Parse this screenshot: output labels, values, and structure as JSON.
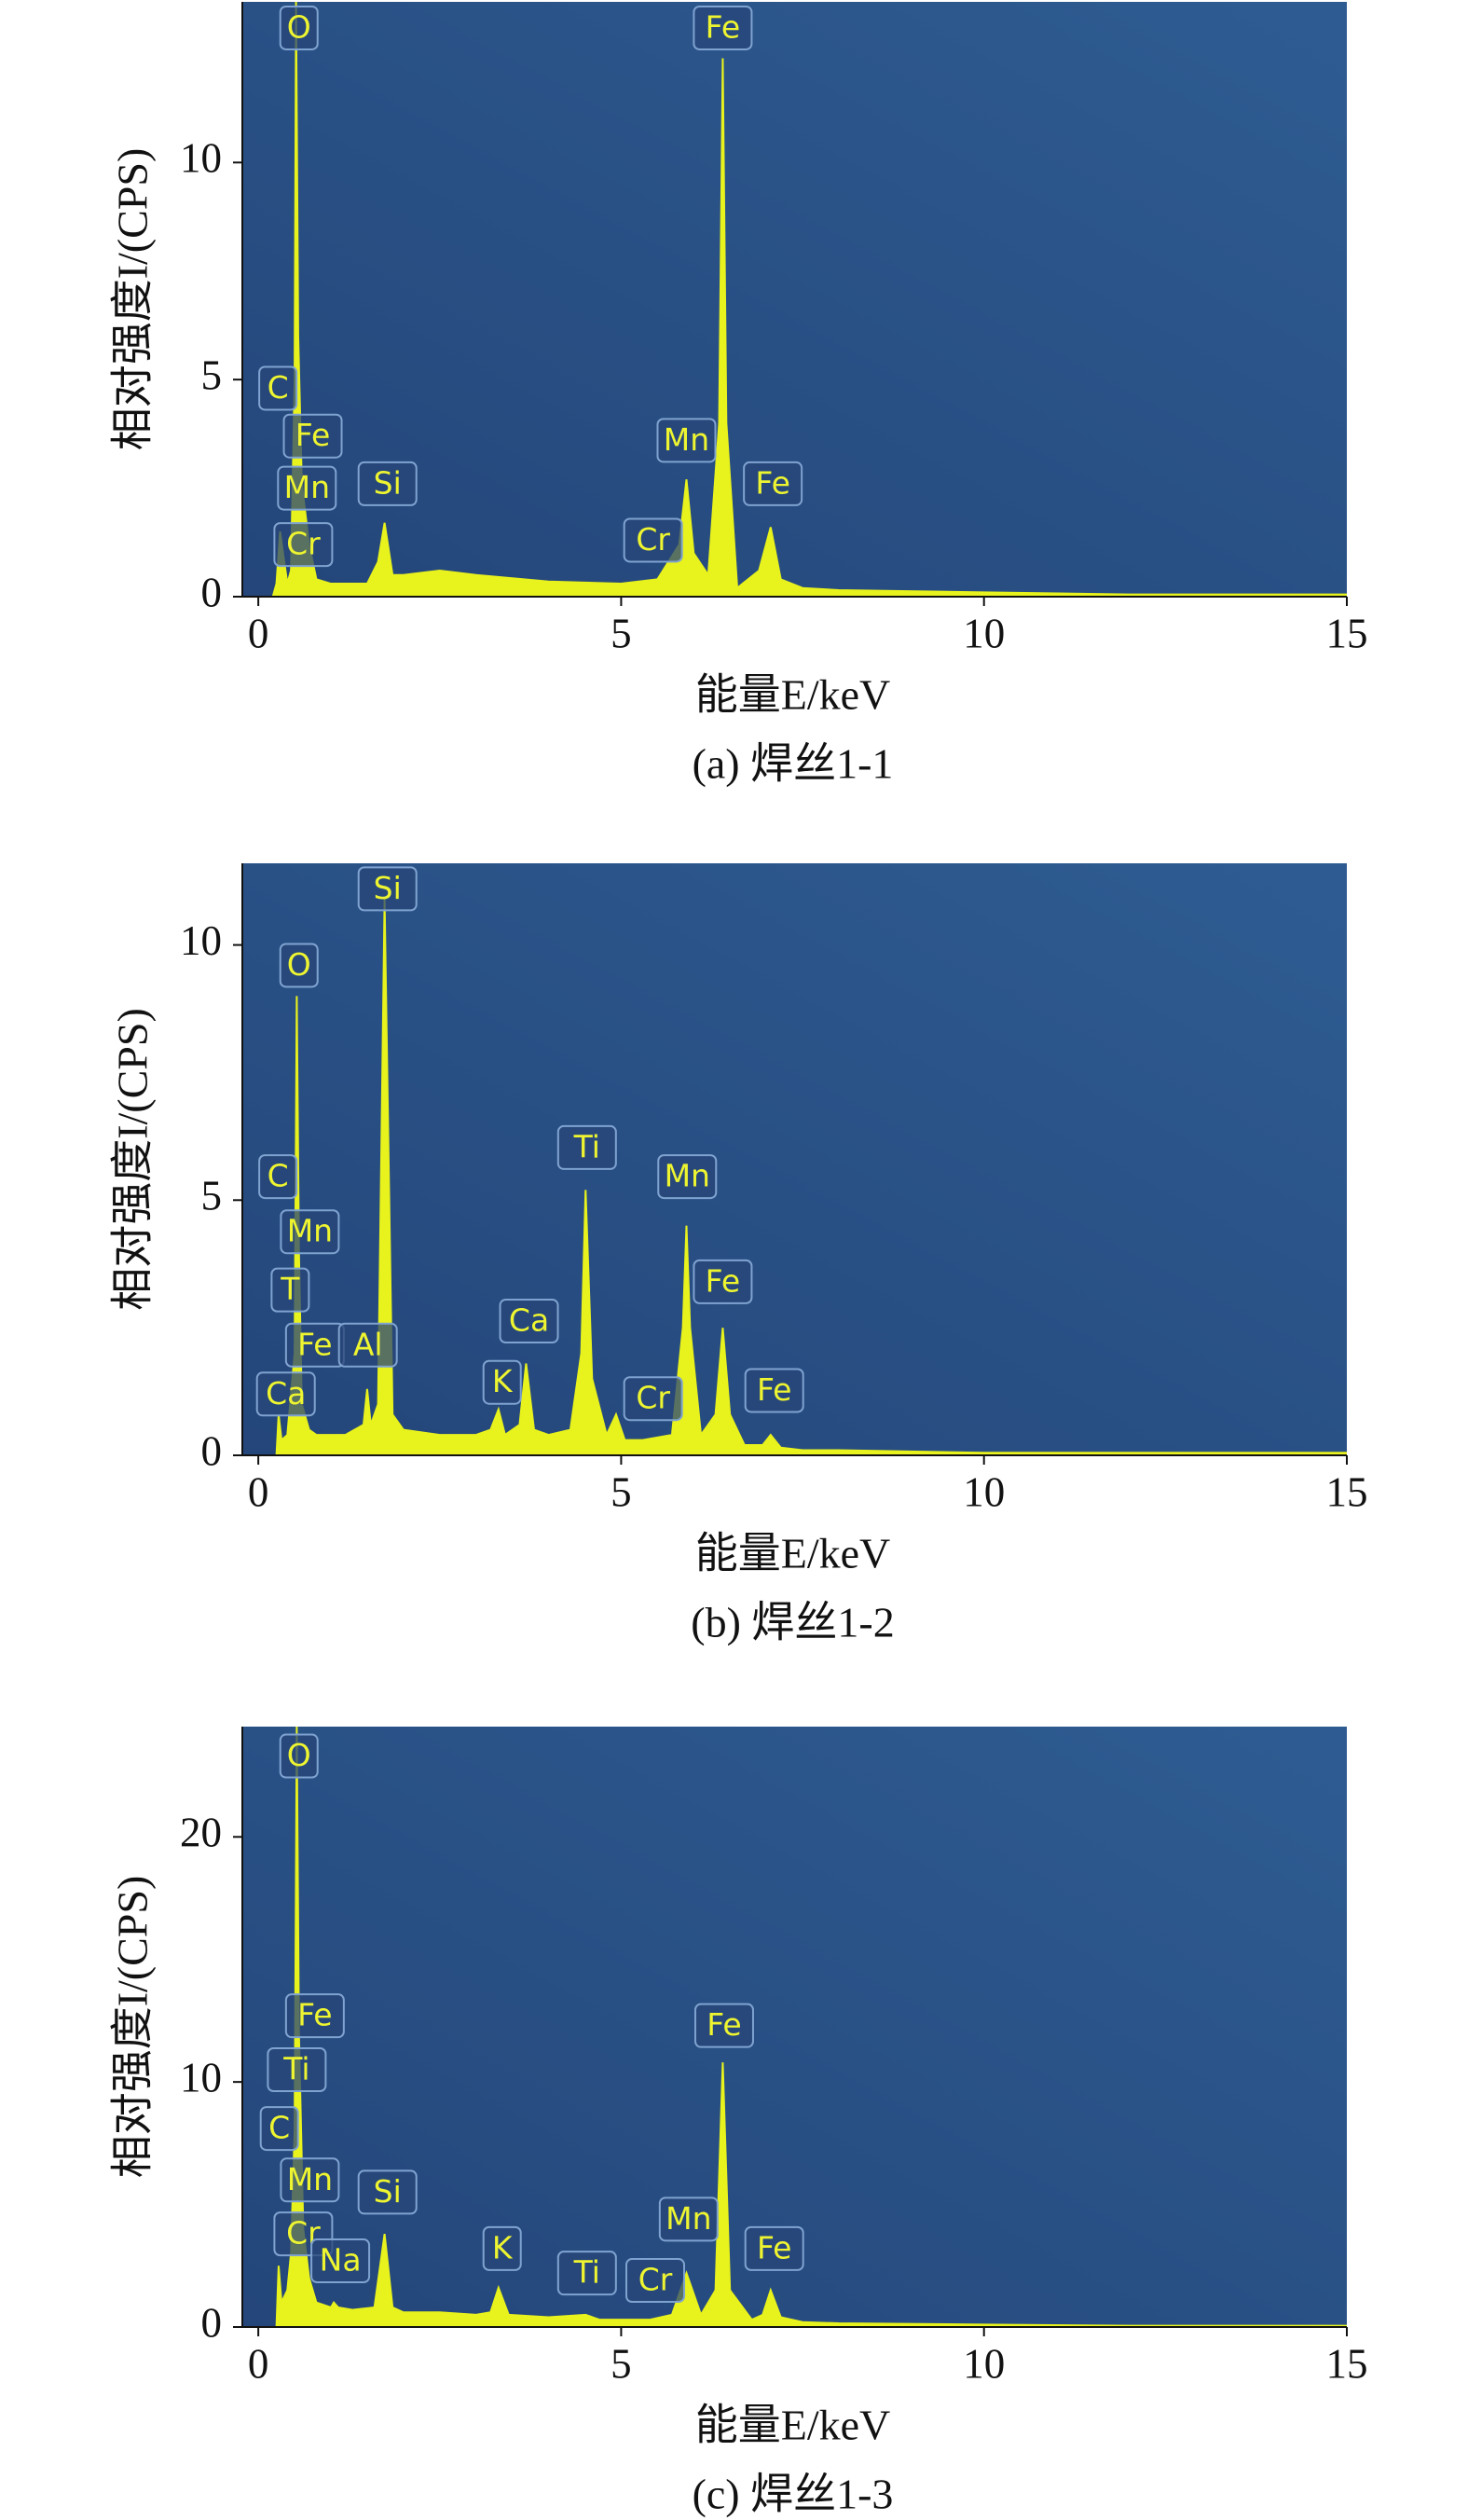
{
  "chart_data": [
    {
      "type": "area",
      "caption": "(a) 焊丝1-1",
      "x_label": "能量E/keV",
      "y_label": "相对强度I/(CPS)",
      "color": "#e8f21c",
      "background": [
        "#24467a",
        "#2e5c92"
      ],
      "xlim": [
        -0.22,
        15
      ],
      "ylim": [
        0,
        13.7
      ],
      "xticks": [
        0,
        5,
        10,
        15
      ],
      "yticks": [
        0,
        5,
        10
      ],
      "x": [
        0,
        0.2,
        0.25,
        0.3,
        0.4,
        0.45,
        0.5,
        0.52,
        0.55,
        0.6,
        0.7,
        0.8,
        1.0,
        1.5,
        1.65,
        1.74,
        1.85,
        2.0,
        2.5,
        3.0,
        4.0,
        5.0,
        5.5,
        5.8,
        5.9,
        6.0,
        6.2,
        6.35,
        6.4,
        6.45,
        6.6,
        6.9,
        7.06,
        7.2,
        7.5,
        8,
        10,
        12,
        15
      ],
      "values": [
        0,
        0,
        0.3,
        1.5,
        0.3,
        0.6,
        5,
        13.7,
        6,
        2.6,
        1.2,
        0.4,
        0.3,
        0.3,
        0.8,
        1.7,
        0.5,
        0.5,
        0.6,
        0.5,
        0.35,
        0.3,
        0.4,
        1.2,
        2.7,
        1.0,
        0.5,
        4,
        12.4,
        4,
        0.2,
        0.6,
        1.6,
        0.4,
        0.2,
        0.15,
        0.1,
        0.05,
        0.05
      ],
      "annotations": [
        {
          "text": "O",
          "x": 0.56,
          "y": 13.1
        },
        {
          "text": "Fe",
          "x": 6.4,
          "y": 13.1
        },
        {
          "text": "C",
          "x": 0.27,
          "y": 4.8
        },
        {
          "text": "Fe",
          "x": 0.75,
          "y": 3.7
        },
        {
          "text": "Mn",
          "x": 0.67,
          "y": 2.5
        },
        {
          "text": "Cr",
          "x": 0.62,
          "y": 1.2
        },
        {
          "text": "Si",
          "x": 1.78,
          "y": 2.6
        },
        {
          "text": "Cr",
          "x": 5.44,
          "y": 1.3
        },
        {
          "text": "Mn",
          "x": 5.9,
          "y": 3.6
        },
        {
          "text": "Fe",
          "x": 7.09,
          "y": 2.6
        }
      ]
    },
    {
      "type": "area",
      "caption": "(b) 焊丝1-2",
      "x_label": "能量E/keV",
      "y_label": "相对强度I/(CPS)",
      "color": "#e8f21c",
      "background": [
        "#24467a",
        "#2e5c92"
      ],
      "xlim": [
        -0.22,
        15
      ],
      "ylim": [
        0,
        11.6
      ],
      "xticks": [
        0,
        5,
        10,
        15
      ],
      "yticks": [
        0,
        5,
        10
      ],
      "x": [
        0,
        0.25,
        0.28,
        0.32,
        0.4,
        0.5,
        0.53,
        0.56,
        0.6,
        0.7,
        0.8,
        1.0,
        1.2,
        1.45,
        1.5,
        1.55,
        1.65,
        1.74,
        1.85,
        2.0,
        2.5,
        3.0,
        3.2,
        3.31,
        3.4,
        3.6,
        3.69,
        3.8,
        4.0,
        4.3,
        4.45,
        4.51,
        4.6,
        4.8,
        4.93,
        5.05,
        5.3,
        5.7,
        5.85,
        5.9,
        5.95,
        6.1,
        6.3,
        6.4,
        6.5,
        6.7,
        6.95,
        7.06,
        7.2,
        7.5,
        8,
        10,
        12,
        15
      ],
      "values": [
        0,
        0,
        0.8,
        0.3,
        0.4,
        2,
        9.0,
        4,
        1,
        0.5,
        0.4,
        0.4,
        0.4,
        0.6,
        1.3,
        0.6,
        1.0,
        10.9,
        0.8,
        0.5,
        0.4,
        0.4,
        0.5,
        0.9,
        0.4,
        0.6,
        1.8,
        0.5,
        0.4,
        0.5,
        2,
        5.2,
        1.5,
        0.4,
        0.8,
        0.3,
        0.3,
        0.4,
        2.5,
        4.5,
        2.5,
        0.4,
        0.8,
        2.5,
        0.8,
        0.2,
        0.2,
        0.4,
        0.15,
        0.1,
        0.1,
        0.05,
        0.05,
        0.05
      ],
      "annotations": [
        {
          "text": "Si",
          "x": 1.78,
          "y": 11.1
        },
        {
          "text": "O",
          "x": 0.56,
          "y": 9.6
        },
        {
          "text": "C",
          "x": 0.27,
          "y": 5.46
        },
        {
          "text": "Mn",
          "x": 0.71,
          "y": 4.38
        },
        {
          "text": "T",
          "x": 0.44,
          "y": 3.24
        },
        {
          "text": "Fe",
          "x": 0.78,
          "y": 2.16
        },
        {
          "text": "Al",
          "x": 1.51,
          "y": 2.16
        },
        {
          "text": "Ca",
          "x": 0.38,
          "y": 1.2
        },
        {
          "text": "K",
          "x": 3.36,
          "y": 1.43
        },
        {
          "text": "Ca",
          "x": 3.73,
          "y": 2.63
        },
        {
          "text": "Ti",
          "x": 4.53,
          "y": 6.03
        },
        {
          "text": "Cr",
          "x": 5.44,
          "y": 1.11
        },
        {
          "text": "Mn",
          "x": 5.91,
          "y": 5.46
        },
        {
          "text": "Fe",
          "x": 6.4,
          "y": 3.4
        },
        {
          "text": "Fe",
          "x": 7.11,
          "y": 1.27
        }
      ]
    },
    {
      "type": "area",
      "caption": "(c) 焊丝1-3",
      "x_label": "能量E/keV",
      "y_label": "相对强度I/(CPS)",
      "color": "#e8f21c",
      "background": [
        "#24467a",
        "#2e5c92"
      ],
      "xlim": [
        -0.22,
        15
      ],
      "ylim": [
        0,
        24.5
      ],
      "xticks": [
        0,
        5,
        10,
        15
      ],
      "yticks": [
        0,
        10,
        20
      ],
      "x": [
        0,
        0.25,
        0.28,
        0.32,
        0.4,
        0.45,
        0.5,
        0.53,
        0.56,
        0.62,
        0.7,
        0.8,
        1.0,
        1.04,
        1.1,
        1.3,
        1.6,
        1.74,
        1.85,
        2.0,
        2.5,
        3.0,
        3.2,
        3.31,
        3.45,
        4.0,
        4.51,
        4.7,
        5.4,
        5.7,
        5.9,
        6.1,
        6.3,
        6.4,
        6.5,
        6.8,
        6.95,
        7.06,
        7.2,
        7.5,
        8,
        10,
        12,
        15
      ],
      "values": [
        0,
        0,
        2.5,
        1,
        1.5,
        3,
        8,
        24.5,
        12,
        4,
        2,
        1,
        0.8,
        1.0,
        0.8,
        0.7,
        0.8,
        3.8,
        0.8,
        0.6,
        0.6,
        0.5,
        0.6,
        1.6,
        0.5,
        0.4,
        0.5,
        0.3,
        0.3,
        0.5,
        2.2,
        0.5,
        1.5,
        10.8,
        1.5,
        0.3,
        0.5,
        1.5,
        0.4,
        0.2,
        0.15,
        0.1,
        0.05,
        0.05
      ],
      "annotations": [
        {
          "text": "O",
          "x": 0.56,
          "y": 23.3
        },
        {
          "text": "Fe",
          "x": 0.78,
          "y": 12.7
        },
        {
          "text": "Ti",
          "x": 0.53,
          "y": 10.5
        },
        {
          "text": "C",
          "x": 0.29,
          "y": 8.1
        },
        {
          "text": "Mn",
          "x": 0.71,
          "y": 6.0
        },
        {
          "text": "Cr",
          "x": 0.62,
          "y": 3.8
        },
        {
          "text": "Na",
          "x": 1.13,
          "y": 2.7
        },
        {
          "text": "Si",
          "x": 1.78,
          "y": 5.5
        },
        {
          "text": "K",
          "x": 3.36,
          "y": 3.2
        },
        {
          "text": "Ti",
          "x": 4.53,
          "y": 2.2
        },
        {
          "text": "Cr",
          "x": 5.47,
          "y": 1.9
        },
        {
          "text": "Mn",
          "x": 5.93,
          "y": 4.4
        },
        {
          "text": "Fe",
          "x": 6.42,
          "y": 12.3
        },
        {
          "text": "Fe",
          "x": 7.11,
          "y": 3.2
        }
      ]
    }
  ]
}
